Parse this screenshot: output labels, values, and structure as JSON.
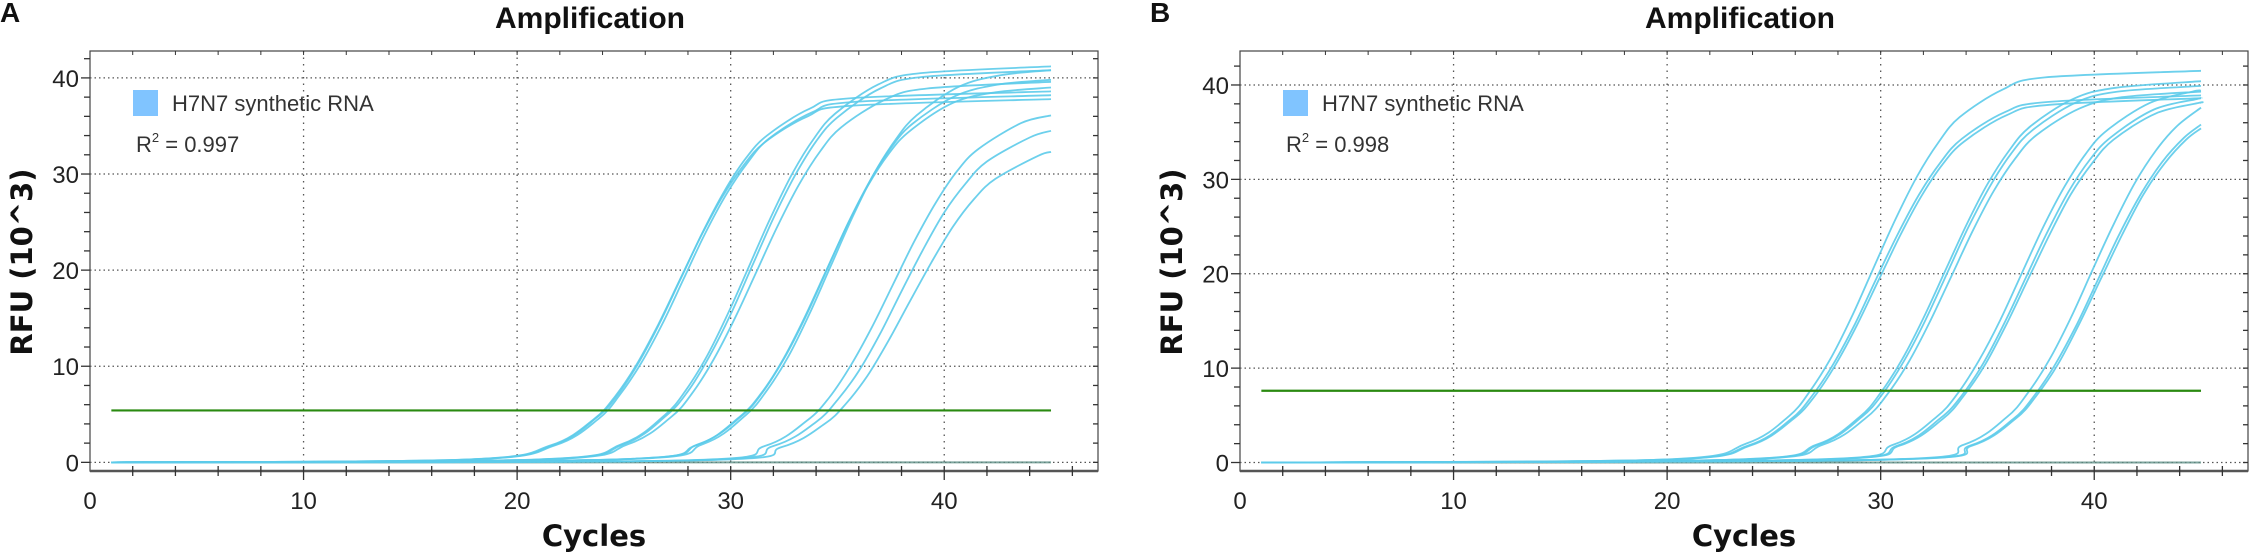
{
  "chart_data": [
    {
      "panel": "A",
      "type": "line",
      "title": "Amplification",
      "xlabel": "Cycles",
      "ylabel": "RFU (10^3)",
      "xlim": [
        0,
        47.2
      ],
      "ylim": [
        -0.9,
        42.8
      ],
      "xticks": [
        0,
        10,
        20,
        30,
        40
      ],
      "yticks": [
        0,
        10,
        20,
        30,
        40
      ],
      "grid": true,
      "legend": {
        "label": "H7N7 synthetic RNA",
        "color": "#80c4ff",
        "position": "top-left"
      },
      "annotation": {
        "r2_prefix": "R",
        "r2_sup": "2",
        "r2_value": " = 0.997"
      },
      "threshold": {
        "value": 5.4,
        "x": [
          1,
          45
        ],
        "color": "#2a8a10"
      },
      "curve_color": "#5ccbea",
      "ntc": {
        "x": [
          2,
          45
        ],
        "y": [
          0,
          0
        ],
        "color": "#5f8f86"
      },
      "series": [
        {
          "x": [
            1,
            17.6,
            21.6,
            23.6,
            24.6,
            25.6,
            26.6,
            27.6,
            28.6,
            29.6,
            30.6,
            31.6,
            33.6,
            35.6,
            45
          ],
          "y": [
            0,
            0.3,
            1.8,
            4.5,
            6.9,
            10.2,
            14.3,
            18.9,
            23.5,
            27.6,
            30.9,
            33.3,
            36.0,
            37.1,
            37.8
          ]
        },
        {
          "x": [
            1,
            17.8,
            21.8,
            23.8,
            24.8,
            25.8,
            26.8,
            27.8,
            28.8,
            29.8,
            30.8,
            31.8,
            33.8,
            35.8,
            45
          ],
          "y": [
            0,
            0.3,
            1.8,
            4.5,
            7.0,
            10.3,
            14.4,
            19.1,
            23.8,
            27.9,
            31.2,
            33.7,
            36.4,
            37.5,
            38.2
          ]
        },
        {
          "x": [
            1,
            17.7,
            21.7,
            23.7,
            24.7,
            25.7,
            26.7,
            27.7,
            28.7,
            29.7,
            30.7,
            31.7,
            33.7,
            35.7,
            45
          ],
          "y": [
            0,
            0.3,
            1.8,
            4.6,
            7.0,
            10.4,
            14.6,
            19.3,
            24.0,
            28.2,
            31.6,
            34.0,
            36.8,
            37.9,
            38.6
          ]
        },
        {
          "x": [
            1,
            20.9,
            24.9,
            26.9,
            27.9,
            28.9,
            29.9,
            30.9,
            31.9,
            32.9,
            33.9,
            34.9,
            36.9,
            38.9,
            45
          ],
          "y": [
            0,
            0.3,
            1.9,
            4.9,
            7.5,
            11.1,
            15.6,
            20.6,
            25.6,
            30.1,
            33.7,
            36.3,
            39.3,
            40.5,
            41.2
          ]
        },
        {
          "x": [
            1,
            21,
            25,
            27,
            28,
            29,
            30,
            31,
            32,
            33,
            34,
            35,
            37,
            39,
            45
          ],
          "y": [
            0,
            0.3,
            1.9,
            4.9,
            7.4,
            11.0,
            15.4,
            20.4,
            25.4,
            29.8,
            33.4,
            35.9,
            38.9,
            40.1,
            40.8
          ]
        },
        {
          "x": [
            1,
            21.2,
            25.2,
            27.2,
            28.2,
            29.2,
            30.2,
            31.2,
            32.2,
            33.2,
            34.2,
            35.2,
            37.2,
            39.2,
            45
          ],
          "y": [
            0,
            0.3,
            1.9,
            4.7,
            7.2,
            10.7,
            15.0,
            19.8,
            24.6,
            28.9,
            32.4,
            34.9,
            37.7,
            38.9,
            39.6
          ]
        },
        {
          "x": [
            1,
            24.4,
            28.4,
            30.4,
            31.4,
            32.4,
            33.4,
            34.4,
            35.4,
            36.4,
            37.4,
            38.4,
            40.4,
            42.4,
            45
          ],
          "y": [
            0,
            0.3,
            1.8,
            4.7,
            7.1,
            10.5,
            14.8,
            19.6,
            24.4,
            28.7,
            32.1,
            34.5,
            37.4,
            38.5,
            39.0
          ]
        },
        {
          "x": [
            1,
            24.5,
            28.5,
            30.5,
            31.5,
            32.5,
            33.5,
            34.5,
            35.5,
            36.5,
            37.5,
            38.5,
            40.5,
            42.5,
            45
          ],
          "y": [
            0,
            0.3,
            1.9,
            4.8,
            7.3,
            10.8,
            15.1,
            20.0,
            24.9,
            29.2,
            32.7,
            35.2,
            38.1,
            39.3,
            39.8
          ]
        },
        {
          "x": [
            1,
            24.7,
            28.7,
            30.7,
            31.7,
            32.7,
            33.7,
            34.7,
            35.7,
            36.7,
            37.7,
            38.7,
            40.7,
            42.7,
            45
          ],
          "y": [
            0,
            0.3,
            1.9,
            4.9,
            7.5,
            11.0,
            15.5,
            20.5,
            25.5,
            30.0,
            33.5,
            36.1,
            39.1,
            40.3,
            40.8
          ]
        },
        {
          "x": [
            1,
            27.6,
            31.6,
            33.6,
            34.6,
            35.6,
            36.6,
            37.6,
            38.6,
            39.6,
            40.6,
            41.6,
            43.6,
            45
          ],
          "y": [
            0,
            0.2,
            1.7,
            4.4,
            6.7,
            10.0,
            14.0,
            18.5,
            23.0,
            27.0,
            30.3,
            32.6,
            35.3,
            36.1
          ]
        },
        {
          "x": [
            1,
            28,
            32,
            34,
            35,
            36,
            37,
            38,
            39,
            40,
            41,
            42,
            44,
            45
          ],
          "y": [
            0,
            0.2,
            1.7,
            4.2,
            6.5,
            9.5,
            13.4,
            17.8,
            22.1,
            26.0,
            29.0,
            31.3,
            33.8,
            34.5
          ]
        },
        {
          "x": [
            1,
            28.4,
            32.4,
            34.4,
            35.4,
            36.4,
            37.4,
            38.4,
            39.4,
            40.4,
            41.4,
            42.4,
            44.4,
            45
          ],
          "y": [
            0,
            0.2,
            1.6,
            4.0,
            6.1,
            9.0,
            12.7,
            16.8,
            20.8,
            24.5,
            27.4,
            29.5,
            31.9,
            32.3
          ]
        }
      ]
    },
    {
      "panel": "B",
      "type": "line",
      "title": "Amplification",
      "xlabel": "Cycles",
      "ylabel": "RFU (10^3)",
      "xlim": [
        0,
        47.2
      ],
      "ylim": [
        -0.9,
        43.6
      ],
      "xticks": [
        0,
        10,
        20,
        30,
        40
      ],
      "yticks": [
        0,
        10,
        20,
        30,
        40
      ],
      "grid": true,
      "legend": {
        "label": "H7N7 synthetic RNA",
        "color": "#80c4ff",
        "position": "top-left"
      },
      "annotation": {
        "r2_prefix": "R",
        "r2_sup": "2",
        "r2_value": " = 0.998"
      },
      "threshold": {
        "value": 7.6,
        "x": [
          1,
          45
        ],
        "color": "#2a8a10"
      },
      "curve_color": "#5ccbea",
      "ntc": {
        "x": [
          2,
          45
        ],
        "y": [
          0,
          0
        ],
        "color": "#5f8f86"
      },
      "series": [
        {
          "x": [
            1,
            19.7,
            23.7,
            25.7,
            26.7,
            27.7,
            28.7,
            29.7,
            30.7,
            31.7,
            32.7,
            33.7,
            35.7,
            37.7,
            45
          ],
          "y": [
            0,
            0.3,
            2.0,
            4.9,
            7.6,
            11.2,
            15.7,
            20.8,
            25.8,
            30.3,
            33.9,
            36.6,
            39.5,
            40.8,
            41.5
          ]
        },
        {
          "x": [
            1,
            19.9,
            23.9,
            25.9,
            26.9,
            27.9,
            28.9,
            29.9,
            30.9,
            31.9,
            32.9,
            33.9,
            35.9,
            37.9,
            45
          ],
          "y": [
            0,
            0.3,
            1.8,
            4.6,
            7.0,
            10.4,
            14.6,
            19.3,
            24.0,
            28.2,
            31.6,
            34.0,
            36.8,
            37.9,
            38.6
          ]
        },
        {
          "x": [
            1,
            19.8,
            23.8,
            25.8,
            26.8,
            27.8,
            28.8,
            29.8,
            30.8,
            31.8,
            32.8,
            33.8,
            35.8,
            37.8,
            45
          ],
          "y": [
            0,
            0.3,
            1.8,
            4.6,
            7.1,
            10.5,
            14.7,
            19.5,
            24.2,
            28.4,
            31.8,
            34.3,
            37.1,
            38.2,
            38.9
          ]
        },
        {
          "x": [
            1,
            23,
            27,
            29,
            30,
            31,
            32,
            33,
            34,
            35,
            36,
            37,
            39,
            41,
            45
          ],
          "y": [
            0,
            0.3,
            1.9,
            4.8,
            7.4,
            10.9,
            15.3,
            20.2,
            25.1,
            29.5,
            33.0,
            35.6,
            38.5,
            39.7,
            40.4
          ]
        },
        {
          "x": [
            1,
            23.1,
            27.1,
            29.1,
            30.1,
            31.1,
            32.1,
            33.1,
            34.1,
            35.1,
            36.1,
            37.1,
            39.1,
            41.1,
            45
          ],
          "y": [
            0,
            0.3,
            1.9,
            4.8,
            7.3,
            10.8,
            15.1,
            20.0,
            24.9,
            29.2,
            32.7,
            35.2,
            38.1,
            39.3,
            39.9
          ]
        },
        {
          "x": [
            1,
            23.3,
            27.3,
            29.3,
            30.3,
            31.3,
            32.3,
            33.3,
            34.3,
            35.3,
            36.3,
            37.3,
            39.3,
            41.3,
            45
          ],
          "y": [
            0,
            0.3,
            1.9,
            4.7,
            7.2,
            10.6,
            14.9,
            19.7,
            24.5,
            28.8,
            32.2,
            34.7,
            37.5,
            38.7,
            39.3
          ]
        },
        {
          "x": [
            1,
            26.6,
            30.6,
            32.6,
            33.6,
            34.6,
            35.6,
            36.6,
            37.6,
            38.6,
            39.6,
            40.6,
            42.6,
            44.6,
            45
          ],
          "y": [
            0,
            0.3,
            1.9,
            4.8,
            7.3,
            10.8,
            15.1,
            20.0,
            24.9,
            29.2,
            32.7,
            35.2,
            38.1,
            39.3,
            39.4
          ]
        },
        {
          "x": [
            1,
            26.8,
            30.8,
            32.8,
            33.8,
            34.8,
            35.8,
            36.8,
            37.8,
            38.8,
            39.8,
            40.8,
            42.8,
            44.8,
            45
          ],
          "y": [
            0,
            0.3,
            1.8,
            4.7,
            7.1,
            10.5,
            14.8,
            19.6,
            24.4,
            28.7,
            32.1,
            34.5,
            37.4,
            38.5,
            38.6
          ]
        },
        {
          "x": [
            1,
            26.9,
            30.9,
            32.9,
            33.9,
            34.9,
            35.9,
            36.9,
            37.9,
            38.9,
            39.9,
            40.9,
            42.9,
            44.9,
            45
          ],
          "y": [
            0,
            0.3,
            1.8,
            4.6,
            7.1,
            10.4,
            14.7,
            19.4,
            24.1,
            28.4,
            31.7,
            34.2,
            37.0,
            38.1,
            38.1
          ]
        },
        {
          "x": [
            1,
            29.9,
            33.9,
            35.9,
            36.9,
            37.9,
            38.9,
            39.9,
            40.9,
            41.9,
            42.9,
            43.9,
            45
          ],
          "y": [
            0,
            0.3,
            1.9,
            4.8,
            7.4,
            10.9,
            15.3,
            20.3,
            25.2,
            29.6,
            33.1,
            35.7,
            37.6
          ]
        },
        {
          "x": [
            1,
            30.2,
            34.2,
            36.2,
            37.2,
            38.2,
            39.2,
            40.2,
            41.2,
            42.2,
            43.2,
            44.2,
            45
          ],
          "y": [
            0,
            0.3,
            1.8,
            4.6,
            7.1,
            10.5,
            14.7,
            19.5,
            24.3,
            28.5,
            31.9,
            34.4,
            35.8
          ]
        },
        {
          "x": [
            1,
            30.3,
            34.3,
            36.3,
            37.3,
            38.3,
            39.3,
            40.3,
            41.3,
            42.3,
            43.3,
            44.3,
            45
          ],
          "y": [
            0,
            0.3,
            1.8,
            4.6,
            7.1,
            10.4,
            14.7,
            19.4,
            24.1,
            28.4,
            31.7,
            34.2,
            35.4
          ]
        }
      ]
    }
  ]
}
